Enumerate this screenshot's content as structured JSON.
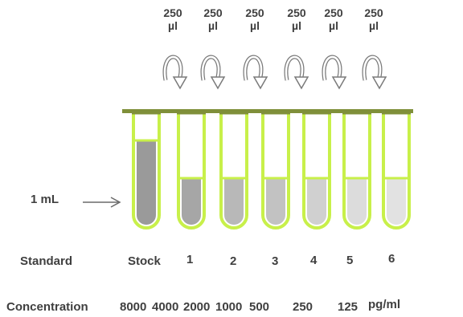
{
  "transfers": [
    {
      "volume": "250",
      "unit": "µl"
    },
    {
      "volume": "250",
      "unit": "µl"
    },
    {
      "volume": "250",
      "unit": "µl"
    },
    {
      "volume": "250",
      "unit": "µl"
    },
    {
      "volume": "250",
      "unit": "µl"
    },
    {
      "volume": "250",
      "unit": "µl"
    }
  ],
  "tubes": [
    {
      "label": "Stock",
      "concentration": "8000",
      "fill_level": 0.78,
      "color": "#9a9a9a"
    },
    {
      "label": "1",
      "concentration": "4000",
      "fill_level": 0.4,
      "color": "#a6a6a6"
    },
    {
      "label": "2",
      "concentration": "2000",
      "fill_level": 0.4,
      "color": "#b8b8b8"
    },
    {
      "label": "3",
      "concentration": "1000",
      "fill_level": 0.4,
      "color": "#c2c2c2"
    },
    {
      "label": "4",
      "concentration": "500",
      "fill_level": 0.4,
      "color": "#d0d0d0"
    },
    {
      "label": "5",
      "concentration": "250",
      "fill_level": 0.4,
      "color": "#dcdcdc"
    },
    {
      "label": "6",
      "concentration": "125",
      "fill_level": 0.4,
      "color": "#e2e2e2"
    }
  ],
  "volume_label": "1 mL",
  "row_labels": {
    "standard": "Standard",
    "concentration": "Concentration",
    "unit": "pg/ml"
  },
  "colors": {
    "tube_outline": "#c8f04a",
    "cap": "#7f8f3a",
    "arrow": "#7a7a7a"
  }
}
